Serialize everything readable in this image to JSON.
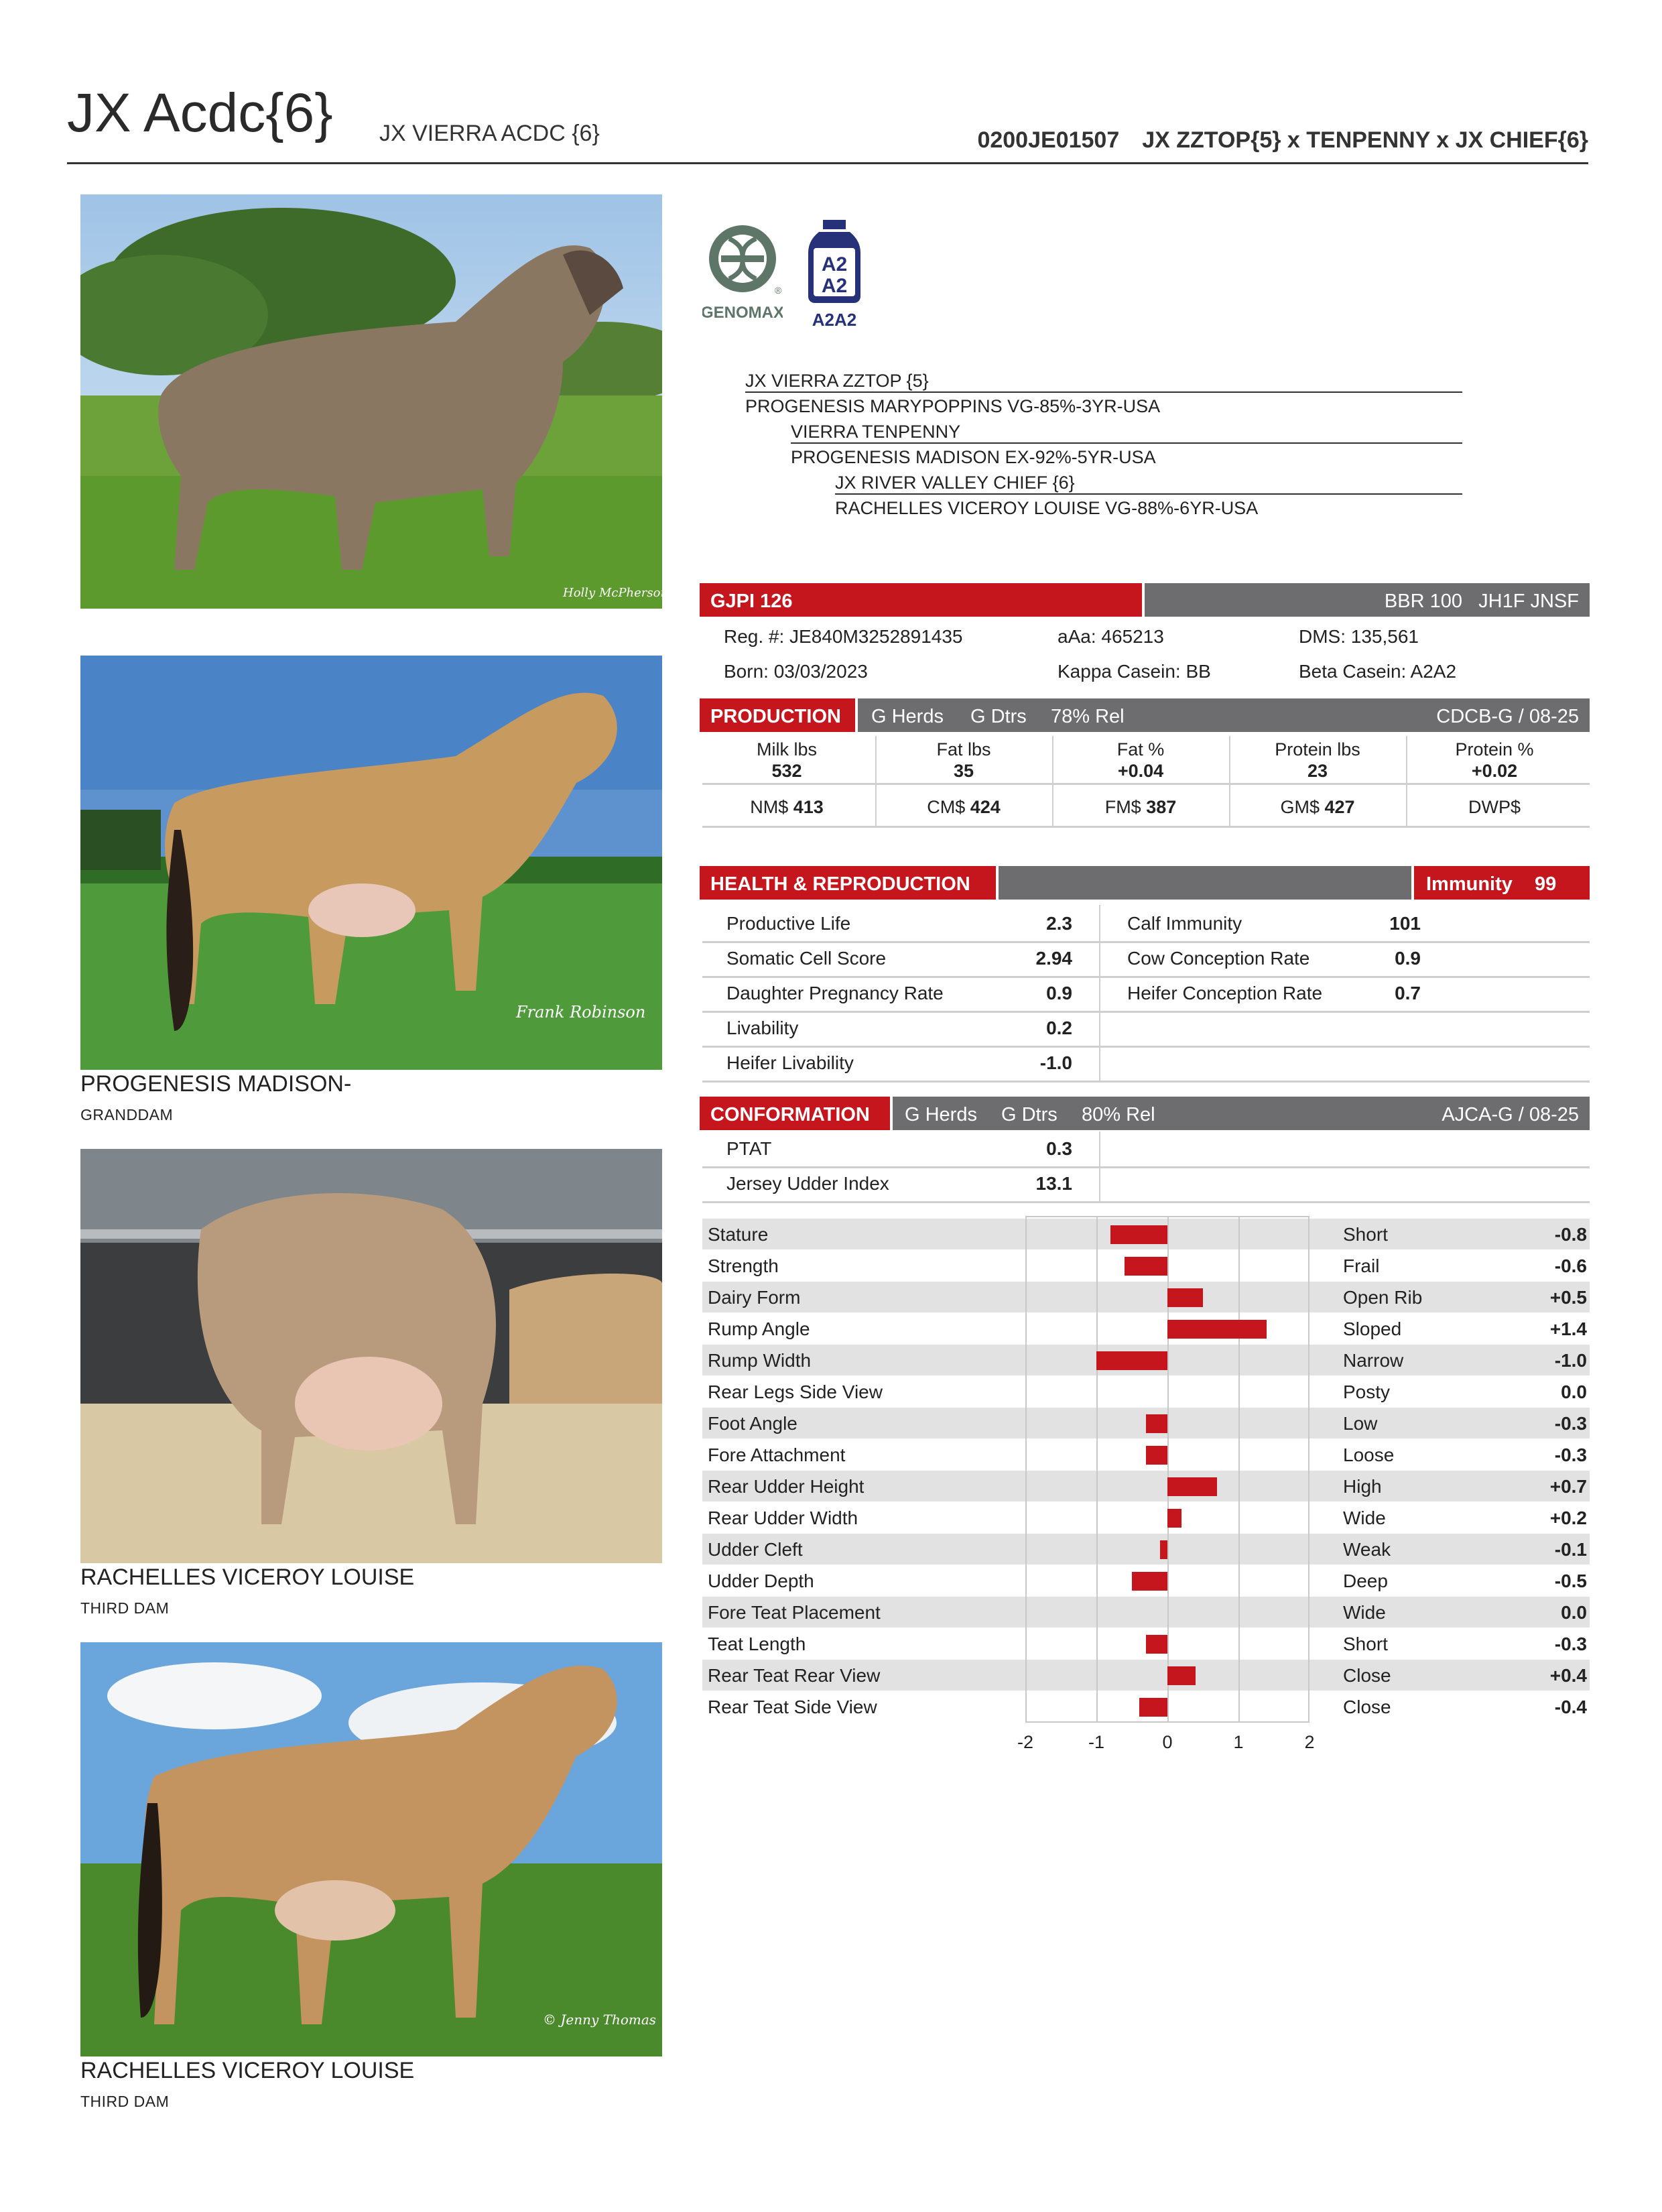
{
  "header": {
    "name": "JX Acdc{6}",
    "full_name": "JX VIERRA ACDC {6}",
    "code": "0200JE01507",
    "pedigree_short": "JX ZZTOP{5} x TENPENNY x JX CHIEF{6}"
  },
  "photos": [
    {
      "caption": "",
      "subcaption": "",
      "credit": "Holly McPherson"
    },
    {
      "caption": "PROGENESIS MADISON-",
      "subcaption": "GRANDDAM",
      "credit": "Frank Robinson"
    },
    {
      "caption": "RACHELLES VICEROY LOUISE",
      "subcaption": "THIRD DAM",
      "credit": ""
    },
    {
      "caption": "RACHELLES VICEROY LOUISE",
      "subcaption": "THIRD DAM",
      "credit": "© Jenny Thomas"
    }
  ],
  "logos": {
    "genomax": "GENOMAX",
    "a2a2_top": "A2",
    "a2a2_bottom": "A2",
    "a2a2_label": "A2A2",
    "registered": "®"
  },
  "pedigree": [
    "JX VIERRA ZZTOP {5}",
    "PROGENESIS MARYPOPPINS VG-85%-3YR-USA",
    "VIERRA TENPENNY",
    "PROGENESIS MADISON EX-92%-5YR-USA",
    "JX RIVER VALLEY CHIEF {6}",
    "RACHELLES VICEROY LOUISE VG-88%-6YR-USA"
  ],
  "index_bar": {
    "gjpi": "GJPI 126",
    "right": "BBR 100   JH1F JNSF"
  },
  "info": {
    "reg": "Reg. #: JE840M3252891435",
    "aaa": "aAa: 465213",
    "dms": "DMS: 135,561",
    "born": "Born: 03/03/2023",
    "kappa": "Kappa Casein: BB",
    "beta": "Beta Casein: A2A2"
  },
  "production": {
    "title": "PRODUCTION",
    "herds": "G Herds",
    "dtrs": "G Dtrs",
    "rel": "78% Rel",
    "source": "CDCB-G / 08-25",
    "traits": [
      {
        "label": "Milk lbs",
        "value": "532"
      },
      {
        "label": "Fat lbs",
        "value": "35"
      },
      {
        "label": "Fat %",
        "value": "+0.04"
      },
      {
        "label": "Protein lbs",
        "value": "23"
      },
      {
        "label": "Protein %",
        "value": "+0.02"
      }
    ],
    "dollars": [
      {
        "label": "NM$",
        "value": "413"
      },
      {
        "label": "CM$",
        "value": "424"
      },
      {
        "label": "FM$",
        "value": "387"
      },
      {
        "label": "GM$",
        "value": "427"
      },
      {
        "label": "DWP$",
        "value": ""
      }
    ]
  },
  "health": {
    "title": "HEALTH & REPRODUCTION",
    "immunity_label": "Immunity",
    "immunity_value": "99",
    "left": [
      {
        "label": "Productive Life",
        "value": "2.3"
      },
      {
        "label": "Somatic Cell Score",
        "value": "2.94"
      },
      {
        "label": "Daughter Pregnancy Rate",
        "value": "0.9"
      },
      {
        "label": "Livability",
        "value": "0.2"
      },
      {
        "label": "Heifer Livability",
        "value": "-1.0"
      }
    ],
    "right": [
      {
        "label": "Calf Immunity",
        "value": "101"
      },
      {
        "label": "Cow Conception Rate",
        "value": "0.9"
      },
      {
        "label": "Heifer Conception Rate",
        "value": "0.7"
      }
    ]
  },
  "conformation": {
    "title": "CONFORMATION",
    "herds": "G Herds",
    "dtrs": "G Dtrs",
    "rel": "80% Rel",
    "source": "AJCA-G / 08-25",
    "rows": [
      {
        "label": "PTAT",
        "value": "0.3"
      },
      {
        "label": "Jersey Udder Index",
        "value": "13.1"
      }
    ]
  },
  "chart_data": {
    "type": "bar",
    "orientation": "horizontal",
    "categories": [
      "Stature",
      "Strength",
      "Dairy Form",
      "Rump Angle",
      "Rump Width",
      "Rear Legs Side View",
      "Foot Angle",
      "Fore Attachment",
      "Rear Udder Height",
      "Rear Udder Width",
      "Udder Cleft",
      "Udder Depth",
      "Fore Teat Placement",
      "Teat Length",
      "Rear Teat Rear View",
      "Rear Teat Side View"
    ],
    "descriptors": [
      "Short",
      "Frail",
      "Open Rib",
      "Sloped",
      "Narrow",
      "Posty",
      "Low",
      "Loose",
      "High",
      "Wide",
      "Weak",
      "Deep",
      "Wide",
      "Short",
      "Close",
      "Close"
    ],
    "values": [
      -0.8,
      -0.6,
      0.5,
      1.4,
      -1.0,
      0.0,
      -0.3,
      -0.3,
      0.7,
      0.2,
      -0.1,
      -0.5,
      0.0,
      -0.3,
      0.4,
      -0.4
    ],
    "value_labels": [
      "-0.8",
      "-0.6",
      "+0.5",
      "+1.4",
      "-1.0",
      "0.0",
      "-0.3",
      "-0.3",
      "+0.7",
      "+0.2",
      "-0.1",
      "-0.5",
      "0.0",
      "-0.3",
      "+0.4",
      "-0.4"
    ],
    "xlim": [
      -2,
      2
    ],
    "ticks": [
      "-2",
      "-1",
      "0",
      "1",
      "2"
    ],
    "bar_color": "#c5161d",
    "grid": true
  },
  "colors": {
    "red": "#c5161d",
    "gray": "#6d6d70",
    "shade": "#e2e2e2"
  }
}
